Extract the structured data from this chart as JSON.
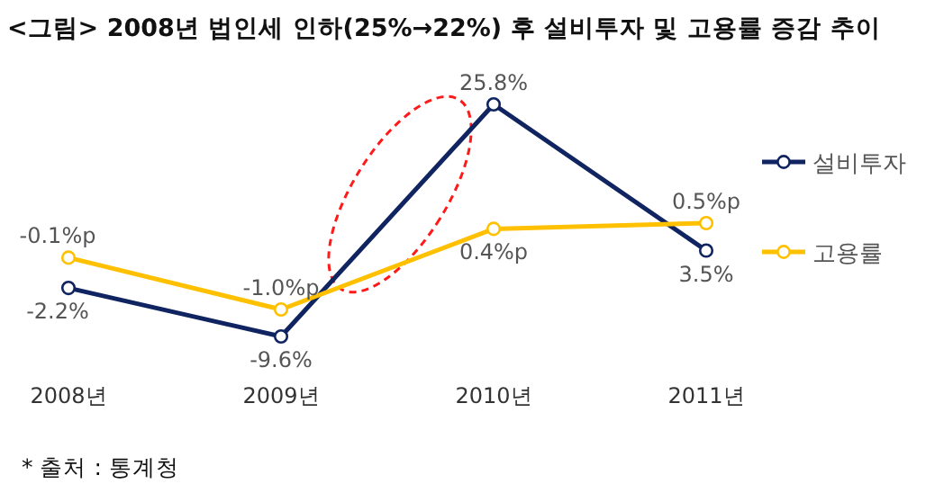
{
  "chart_data": {
    "type": "line",
    "title": "<그림> 2008년 법인세 인하(25%→22%) 후 설비투자 및 고용률 증감 추이",
    "categories": [
      "2008년",
      "2009년",
      "2010년",
      "2011년"
    ],
    "series": [
      {
        "name": "설비투자",
        "color": "#0f2460",
        "values": [
          -2.2,
          -9.6,
          25.8,
          3.5
        ],
        "value_labels": [
          "-2.2%",
          "-9.6%",
          "25.8%",
          "3.5%"
        ]
      },
      {
        "name": "고용률",
        "color": "#ffc000",
        "axis": "y2",
        "values": [
          -0.1,
          -1.0,
          0.4,
          0.5
        ],
        "value_labels": [
          "-0.1%p",
          "-1.0%p",
          "0.4%p",
          "0.5%p"
        ]
      }
    ],
    "tick_labels": "x",
    "marker": "circle",
    "legend": "right",
    "annotations": [
      "* 출처 : 통계청"
    ]
  }
}
